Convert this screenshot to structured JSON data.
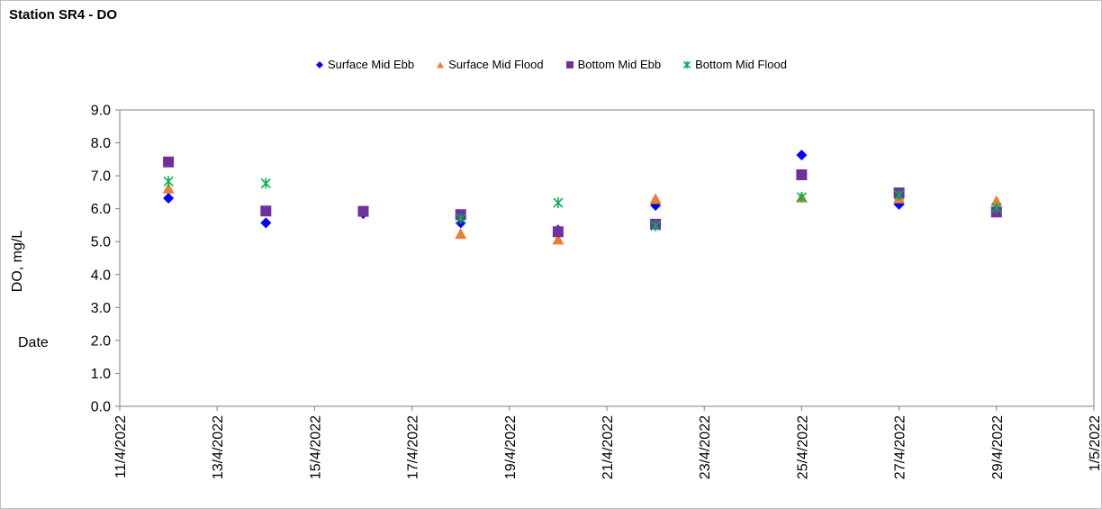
{
  "chart_data": {
    "type": "scatter",
    "title": "Station SR4 - DO",
    "xlabel": "Date",
    "ylabel": "DO, mg/L",
    "ylim": [
      0,
      9
    ],
    "yticks": [
      "0.0",
      "1.0",
      "2.0",
      "3.0",
      "4.0",
      "5.0",
      "6.0",
      "7.0",
      "8.0",
      "9.0"
    ],
    "xlim": [
      "2022-04-11",
      "2022-05-01"
    ],
    "xticks": [
      "11/4/2022",
      "13/4/2022",
      "15/4/2022",
      "17/4/2022",
      "19/4/2022",
      "21/4/2022",
      "23/4/2022",
      "25/4/2022",
      "27/4/2022",
      "29/4/2022",
      "1/5/2022"
    ],
    "grid": false,
    "legend_position": "top",
    "series": [
      {
        "name": "Surface Mid Ebb",
        "marker": "diamond",
        "color": "#0000ff",
        "x": [
          "2022-04-12",
          "2022-04-14",
          "2022-04-16",
          "2022-04-18",
          "2022-04-20",
          "2022-04-22",
          "2022-04-25",
          "2022-04-27",
          "2022-04-29"
        ],
        "y": [
          6.32,
          5.57,
          5.85,
          5.57,
          5.35,
          6.1,
          7.63,
          6.13,
          5.93
        ]
      },
      {
        "name": "Surface Mid Flood",
        "marker": "triangle",
        "color": "#ed7d31",
        "x": [
          "2022-04-12",
          "2022-04-16",
          "2022-04-18",
          "2022-04-20",
          "2022-04-22",
          "2022-04-25",
          "2022-04-27",
          "2022-04-29"
        ],
        "y": [
          6.6,
          5.9,
          5.22,
          5.05,
          6.28,
          6.33,
          6.3,
          6.22
        ]
      },
      {
        "name": "Bottom Mid Ebb",
        "marker": "square",
        "color": "#7030a0",
        "x": [
          "2022-04-12",
          "2022-04-14",
          "2022-04-16",
          "2022-04-18",
          "2022-04-20",
          "2022-04-22",
          "2022-04-25",
          "2022-04-27",
          "2022-04-29"
        ],
        "y": [
          7.42,
          5.93,
          5.92,
          5.82,
          5.3,
          5.53,
          7.03,
          6.48,
          5.9
        ]
      },
      {
        "name": "Bottom Mid Flood",
        "marker": "star",
        "color": "#00b050",
        "x": [
          "2022-04-12",
          "2022-04-14",
          "2022-04-18",
          "2022-04-20",
          "2022-04-22",
          "2022-04-25",
          "2022-04-27",
          "2022-04-29"
        ],
        "y": [
          6.83,
          6.77,
          5.7,
          6.18,
          5.48,
          6.35,
          6.42,
          6.03
        ]
      }
    ]
  }
}
